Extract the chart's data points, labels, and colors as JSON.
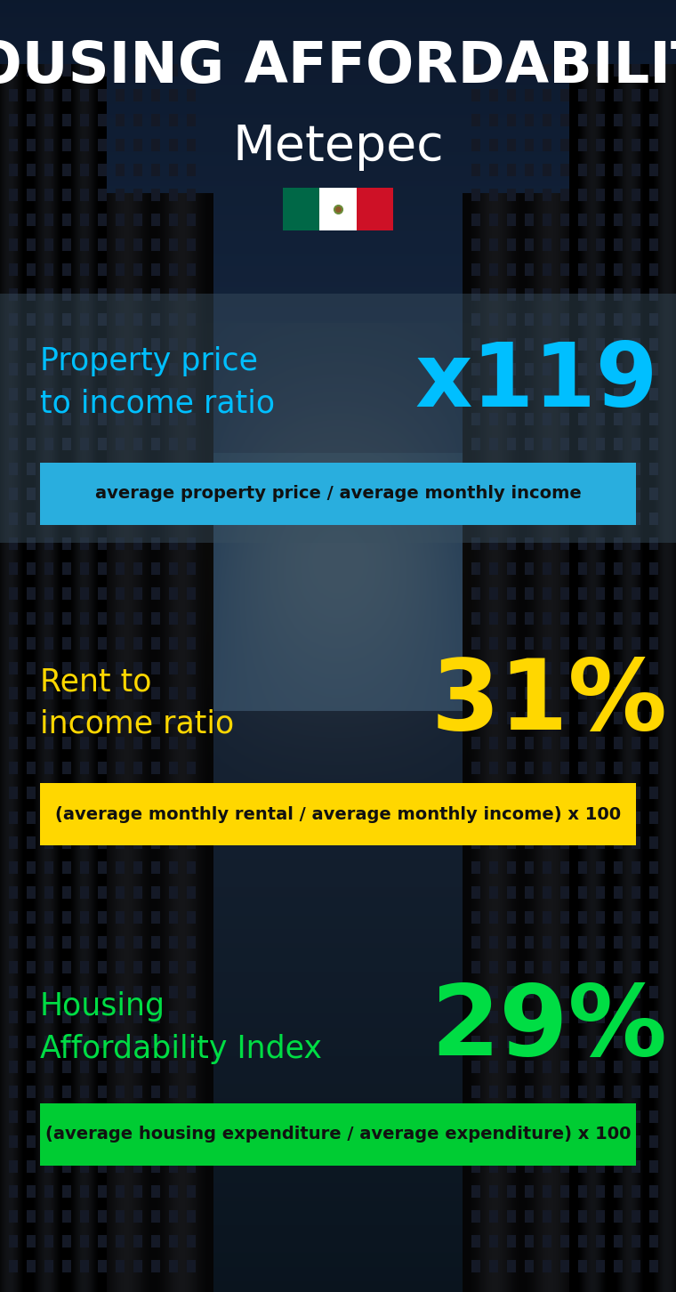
{
  "title_line1": "HOUSING AFFORDABILITY",
  "title_line2": "Metepec",
  "bg_color": "#0d1b2a",
  "section1_label": "Property price\nto income ratio",
  "section1_value": "x119",
  "section1_label_color": "#00bfff",
  "section1_value_color": "#00bfff",
  "section1_band_color": "#29AEDE",
  "section1_band_text": "average property price / average monthly income",
  "section2_label": "Rent to\nincome ratio",
  "section2_value": "31%",
  "section2_label_color": "#FFD700",
  "section2_value_color": "#FFD700",
  "section2_band_color": "#FFD700",
  "section2_band_text": "(average monthly rental / average monthly income) x 100",
  "section3_label": "Housing\nAffordability Index",
  "section3_value": "29%",
  "section3_label_color": "#00DD44",
  "section3_value_color": "#00DD44",
  "section3_band_color": "#00CC33",
  "section3_band_text": "(average housing expenditure / average expenditure) x 100",
  "flag_green": "#006847",
  "flag_white": "#FFFFFF",
  "flag_red": "#CE1126",
  "panel1_color": "#2a3a4a",
  "panel1_alpha": 0.6,
  "text_band_color": "#111111"
}
